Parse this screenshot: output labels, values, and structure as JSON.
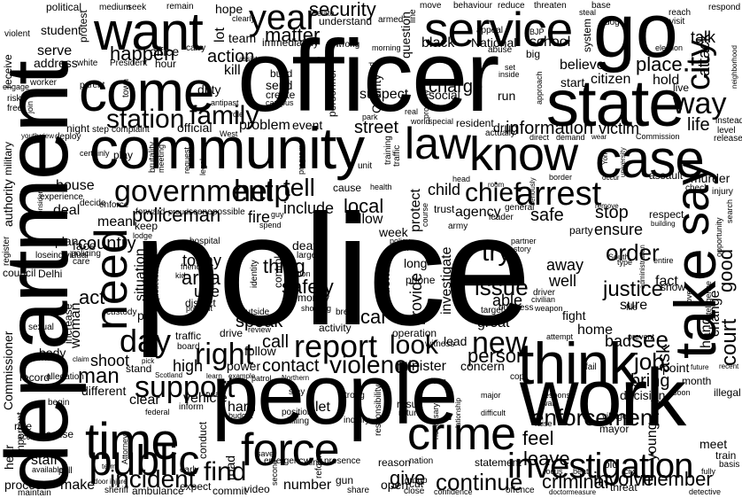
{
  "cloud": {
    "text_color": "#000000",
    "background": "#ffffff",
    "words": {
      "police": "police",
      "officer": "officer",
      "department": "department",
      "people": "people",
      "work": "work",
      "community": "community",
      "state": "state",
      "go": "go",
      "service": "service",
      "come": "come",
      "want": "want",
      "think": "think",
      "take": "take",
      "say": "say",
      "case": "case",
      "crime": "crime",
      "force": "force",
      "time": "time",
      "know": "know",
      "law": "law",
      "year": "year",
      "need": "need",
      "public": "public",
      "investigation": "investigation",
      "report": "report",
      "arrest": "arrest",
      "city": "city",
      "station": "station",
      "family": "family",
      "government": "government",
      "help": "help",
      "day": "day",
      "right": "right",
      "support": "support",
      "find": "find",
      "incident": "incident",
      "continue": "continue",
      "give": "give",
      "violence": "violence",
      "new": "new",
      "look": "look",
      "enforcement": "enforcement",
      "chief": "chief",
      "way": "way",
      "place": "place",
      "information": "information",
      "security": "security",
      "matter": "matter",
      "policeman": "policeman",
      "tell": "tell",
      "local": "local",
      "thing": "thing",
      "safety": "safety",
      "area": "area",
      "try": "try",
      "issue": "issue",
      "order": "order",
      "justice": "justice",
      "member": "member",
      "criminal": "criminal",
      "involve": "involve",
      "job": "job",
      "see": "see",
      "feel": "feel",
      "leave": "leave",
      "bring": "bring",
      "man": "man",
      "shoot": "shoot",
      "call": "call",
      "contact": "contact",
      "person": "person",
      "act": "act",
      "car": "car",
      "court": "court",
      "good": "good",
      "change": "change",
      "ask": "ask",
      "stop": "stop",
      "ensure": "ensure",
      "safe": "safe",
      "agency": "agency",
      "action": "action",
      "happen": "happen",
      "attack": "attack",
      "life": "life",
      "victim": "victim",
      "drug": "drug",
      "street": "street",
      "problem": "problem",
      "event": "event",
      "school": "school",
      "talk": "talk",
      "national": "National",
      "black": "black",
      "charge": "charge",
      "social": "social",
      "believe": "believe",
      "citizen": "citizen",
      "hold": "hold",
      "start": "start",
      "country": "country",
      "house": "house",
      "situation": "situation",
      "today": "today",
      "use": "use",
      "speak": "speak",
      "district": "district",
      "fire": "fire",
      "include": "include",
      "allow": "allow",
      "week": "week",
      "protect": "protect",
      "child": "child",
      "investigate": "investigate",
      "provide": "provide",
      "evidence": "evidence",
      "able": "able",
      "well": "well",
      "away": "away",
      "home": "home",
      "bad": "bad",
      "fact": "fact",
      "sure": "sure",
      "show": "show",
      "fight": "fight",
      "great": "great",
      "lead": "lead",
      "operation": "operation",
      "minister": "minister",
      "concern": "concern",
      "high": "high",
      "power": "power",
      "follow": "follow",
      "different": "different",
      "clear": "clear",
      "vehicle": "vehicle",
      "hard": "hard",
      "let": "let",
      "number": "number",
      "open": "open",
      "cut": "cut",
      "result": "result",
      "return": "return",
      "staff": "staff",
      "make": "make",
      "process": "process",
      "young": "young",
      "meet": "meet",
      "decision": "decision",
      "point": "point",
      "commissioner": "Commissioner",
      "authority": "authority",
      "military": "military",
      "serve": "serve",
      "address": "address",
      "student": "student",
      "political": "political",
      "duty": "duty",
      "kill": "kill",
      "official": "official",
      "mean": "mean",
      "deal": "deal",
      "plan": "plan",
      "face": "face",
      "council": "council",
      "delhi": "Delhi",
      "woman": "woman",
      "increase": "increase",
      "run": "run",
      "suspect": "suspect",
      "county": "County",
      "personnel": "personnel",
      "build": "build",
      "send": "send",
      "create": "create",
      "office": "office",
      "team": "team",
      "lot": "lot",
      "hope": "hope",
      "stand": "stand",
      "road": "road",
      "conduct": "conduct",
      "expect": "expect",
      "reason": "reason",
      "nation": "nation",
      "statement": "statement",
      "mayor": "mayor",
      "village": "village",
      "hand": "hand",
      "month": "month",
      "illegal": "illegal",
      "train": "train",
      "basis": "basis",
      "hear": "hear",
      "maintain": "maintain",
      "sheriff": "sheriff",
      "ambulance": "ambulance",
      "commit": "commit",
      "video": "video",
      "share": "share",
      "close": "close",
      "confidence": "confidence",
      "offence": "offence",
      "threat": "threat",
      "detective": "detective",
      "pay": "pay",
      "custody": "custody",
      "sexual": "sexual",
      "body": "body",
      "arrive": "arrive",
      "record": "record",
      "allegation": "allegation",
      "rule": "rule",
      "account": "account",
      "accuse": "accuse",
      "begin": "begin",
      "important": "important",
      "available": "available",
      "pull": "pull",
      "early": "early",
      "inform": "inform",
      "traffic": "traffic",
      "board": "board",
      "drive": "drive",
      "review": "review",
      "position": "position",
      "killing": "killing",
      "emergency": "emergency",
      "presence": "presence",
      "kind": "kind",
      "reform": "reform",
      "group": "group",
      "gun": "gun",
      "second": "second",
      "inquiry": "inquiry",
      "responsibility": "responsibility",
      "training": "training",
      "traffic2": "traffic",
      "cause": "cause",
      "hospital": "hospital",
      "death": "death",
      "large": "large",
      "phone": "phone",
      "long": "long",
      "army": "army",
      "leader": "leader",
      "party": "party",
      "general": "general",
      "trust": "trust",
      "respect": "respect",
      "murder": "murder",
      "assault": "assault",
      "check": "check",
      "injury": "injury",
      "instead": "instead",
      "release": "release",
      "level": "level",
      "live": "live",
      "visit": "visit",
      "reach": "reach",
      "respond": "respond",
      "dog": "dog",
      "base": "base",
      "system": "system",
      "question": "question",
      "wrong": "wrong",
      "immediately": "immediately",
      "understand": "understand",
      "armed": "armed",
      "threaten": "threaten",
      "behaviour": "behaviour",
      "reduce": "reduce",
      "move": "move",
      "line": "line",
      "appeal": "appeal",
      "morning": "morning",
      "abuse": "abuse",
      "carry": "carry",
      "president": "President",
      "hour": "hour",
      "white": "white",
      "protest": "protest",
      "medium": "medium",
      "seek": "seek",
      "remain": "remain",
      "clearly": "clearly",
      "relate": "relate",
      "violent": "violent",
      "receive": "receive",
      "engage": "engage",
      "worker": "worker",
      "parent": "parent",
      "town": "town",
      "risk": "risk",
      "free": "free",
      "join": "join",
      "youth": "youth",
      "view": "view",
      "deploy": "deploy",
      "night": "night",
      "step": "step",
      "complaint": "complaint",
      "certainly": "certainly",
      "play": "play",
      "brutality": "brutality",
      "meeting": "meeting",
      "request": "request",
      "legal": "legal",
      "north": "North",
      "experience": "experience",
      "decide": "decide",
      "enforce": "enforce",
      "policing": "policing",
      "lose": "lose",
      "individual": "individual",
      "care": "care",
      "register": "register",
      "keep": "keep",
      "lodge": "lodge",
      "proud": "proud",
      "scene": "scene",
      "possible": "possible",
      "forward": "forward",
      "guy": "guy",
      "spend": "spend",
      "identity": "identity",
      "control": "control",
      "friend": "friend",
      "kid": "kid",
      "present": "present",
      "outside": "outside",
      "money": "money",
      "shooting": "shooting",
      "section": "section",
      "activity": "activity",
      "break": "break",
      "witness": "witness",
      "attempt": "attempt",
      "prevent": "prevent",
      "target": "target",
      "business": "business",
      "civilian": "civilian",
      "driver": "driver",
      "weapon": "weapon",
      "file": "file",
      "love": "love",
      "intelligence": "intelligence",
      "entire": "entire",
      "type": "type",
      "south": "South",
      "partner": "partner",
      "story": "story",
      "catch": "catch",
      "policy": "policy",
      "course": "course",
      "health": "health",
      "unit": "unit",
      "world": "world",
      "special": "special",
      "resident": "resident",
      "actually": "actually",
      "direct": "direct",
      "demand": "demand",
      "wear": "wear",
      "commission": "Commission",
      "election": "election",
      "approach": "approach",
      "property": "property",
      "ground": "ground",
      "park": "park",
      "real": "real",
      "set": "set",
      "inside": "inside",
      "big": "big",
      "bjp": "BJP",
      "antipast": "antipast",
      "assist": "assist",
      "campus": "campus",
      "west": "West",
      "role": "role",
      "prosecutor": "prosecutor",
      "program": "program",
      "steal": "steal",
      "former": "former",
      "news": "news",
      "mark": "mark",
      "near": "near",
      "budget": "budget",
      "strong": "strong",
      "stay": "stay",
      "fail": "fail",
      "raise": "raise",
      "focus": "focus",
      "beat": "beat",
      "old": "old",
      "civil": "civil",
      "fully": "fully",
      "treat": "treat",
      "wait": "wait",
      "difficult": "difficult",
      "major": "major",
      "attorney": "Attorney",
      "federal": "federal",
      "scotland": "Scotland",
      "patrol": "patrol",
      "northern": "Northern",
      "learn": "learn",
      "example": "example",
      "save": "save",
      "term": "term",
      "door": "door",
      "injure": "injure",
      "doctor": "doctor",
      "measure": "measure",
      "recent": "recent",
      "future": "future",
      "enter": "enter",
      "soon": "soon",
      "tackle": "tackle",
      "cop": "cop",
      "form": "form",
      "necessary": "necessary",
      "relationship": "relationship",
      "response": "response",
      "claim": "claim",
      "pick": "pick",
      "half": "half",
      "neighborhood": "neighborhood",
      "headquarters": "headquarters",
      "opportunity": "opportunity",
      "search": "search",
      "administration": "administration",
      "building": "building",
      "remove": "remove",
      "head": "head",
      "border": "border",
      "room": "room",
      "leave2": "leave",
      "role2": "role",
      "occur": "occur",
      "university": "university",
      "seriously": "seriously",
      "york": "York",
      "accountability": "accountability",
      "consider": "consider",
      "approve": "approve"
    }
  }
}
